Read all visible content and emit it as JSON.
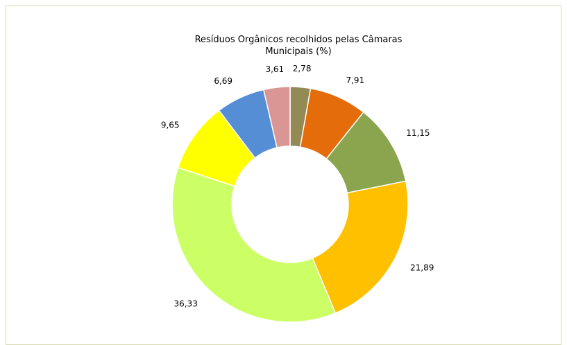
{
  "chart_data": {
    "type": "donut",
    "title": "Resíduos Orgânicos recolhidos pelas Câmaras Municipais (%)",
    "values": [
      2.78,
      7.91,
      11.15,
      21.89,
      36.33,
      9.65,
      6.69,
      3.61
    ],
    "value_labels": [
      "2,78",
      "7,91",
      "11,15",
      "21,89",
      "36,33",
      "9,65",
      "6,69",
      "3,61"
    ],
    "colors": [
      "#948a54",
      "#e46c0a",
      "#8ba54f",
      "#ffc000",
      "#ccff66",
      "#ffff00",
      "#558ed5",
      "#d99694"
    ]
  }
}
